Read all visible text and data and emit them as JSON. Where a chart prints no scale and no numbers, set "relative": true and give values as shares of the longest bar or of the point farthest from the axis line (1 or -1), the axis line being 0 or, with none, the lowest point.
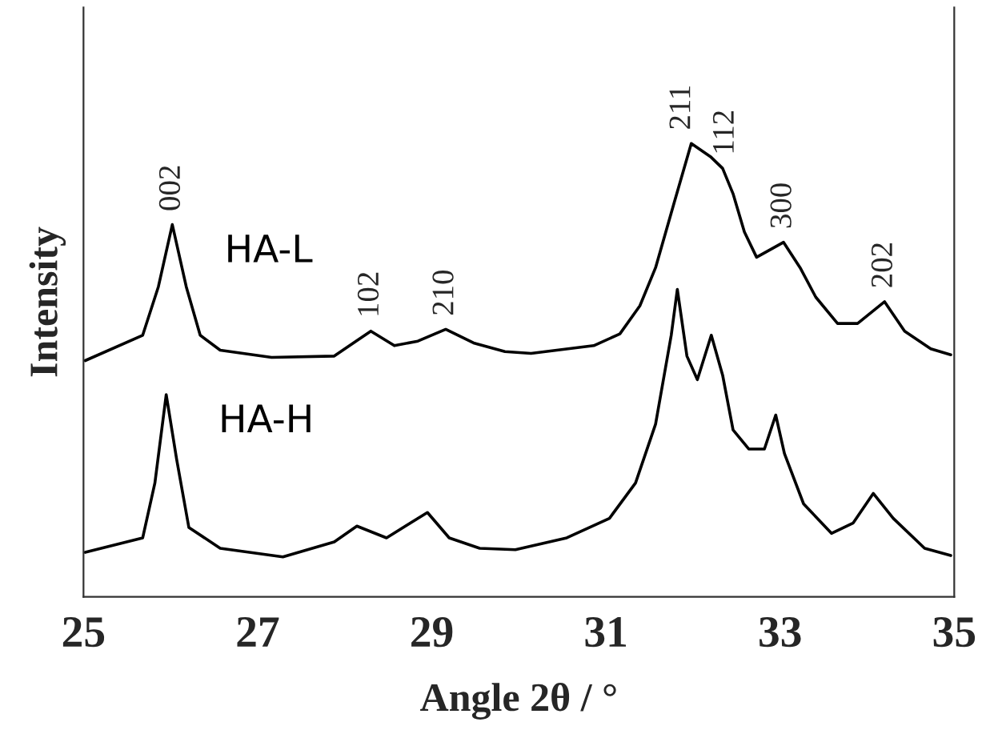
{
  "chart_data": {
    "type": "line",
    "relative": true,
    "xlabel": "Angle 2θ / °",
    "ylabel": "Intensity",
    "xlim": [
      25,
      35
    ],
    "xticks": [
      25,
      27,
      29,
      31,
      33,
      35
    ],
    "tick_labels": "x",
    "line_style": "solid",
    "series": [
      {
        "name": "HA-L",
        "color": "#000000",
        "x": [
          25.02,
          25.68,
          25.86,
          26.02,
          26.18,
          26.34,
          26.57,
          27.16,
          27.88,
          28.13,
          28.3,
          28.57,
          28.84,
          29.16,
          29.48,
          29.84,
          30.14,
          30.86,
          31.16,
          31.39,
          31.57,
          31.75,
          31.98,
          32.2,
          32.34,
          32.46,
          32.59,
          32.73,
          33.04,
          33.23,
          33.41,
          33.66,
          33.89,
          34.2,
          34.43,
          34.73,
          34.96
        ],
        "values": [
          0.521,
          0.577,
          0.684,
          0.821,
          0.684,
          0.577,
          0.544,
          0.528,
          0.531,
          0.564,
          0.586,
          0.554,
          0.564,
          0.59,
          0.56,
          0.541,
          0.537,
          0.554,
          0.58,
          0.642,
          0.726,
          0.847,
          1.0,
          0.971,
          0.945,
          0.889,
          0.805,
          0.749,
          0.782,
          0.726,
          0.661,
          0.603,
          0.603,
          0.651,
          0.586,
          0.547,
          0.534
        ]
      },
      {
        "name": "HA-H",
        "color": "#000000",
        "x": [
          25.02,
          25.68,
          25.82,
          25.95,
          26.07,
          26.21,
          26.57,
          27.29,
          27.88,
          28.14,
          28.48,
          28.95,
          29.2,
          29.55,
          29.96,
          30.55,
          31.04,
          31.34,
          31.57,
          31.75,
          31.82,
          31.93,
          32.05,
          32.21,
          32.34,
          32.46,
          32.64,
          32.82,
          32.95,
          33.05,
          33.27,
          33.59,
          33.84,
          34.07,
          34.3,
          34.66,
          34.96
        ],
        "values": [
          0.098,
          0.13,
          0.251,
          0.446,
          0.303,
          0.153,
          0.107,
          0.088,
          0.121,
          0.156,
          0.13,
          0.186,
          0.13,
          0.107,
          0.104,
          0.13,
          0.173,
          0.251,
          0.381,
          0.577,
          0.678,
          0.531,
          0.479,
          0.577,
          0.489,
          0.368,
          0.326,
          0.326,
          0.401,
          0.316,
          0.205,
          0.14,
          0.163,
          0.228,
          0.173,
          0.107,
          0.091
        ]
      }
    ],
    "annotations": [
      {
        "text": "002",
        "x": 26.02,
        "y": 0.821
      },
      {
        "text": "102",
        "x": 28.3,
        "y": 0.586
      },
      {
        "text": "210",
        "x": 29.16,
        "y": 0.59
      },
      {
        "text": "211",
        "x": 31.88,
        "y": 1.0
      },
      {
        "text": "112",
        "x": 32.38,
        "y": 0.945
      },
      {
        "text": "300",
        "x": 33.04,
        "y": 0.782
      },
      {
        "text": "202",
        "x": 34.2,
        "y": 0.651
      }
    ]
  }
}
